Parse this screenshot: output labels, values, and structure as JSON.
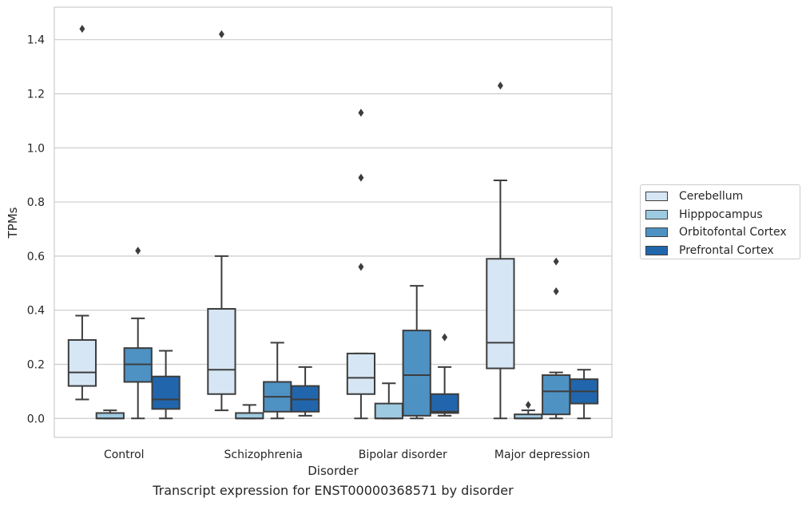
{
  "caption": "Transcript expression for ENST00000368571 by disorder",
  "chart_data": {
    "type": "box",
    "xlabel": "Disorder",
    "ylabel": "TPMs",
    "ylim": [
      -0.07,
      1.52
    ],
    "yticks": [
      "0.0",
      "0.2",
      "0.4",
      "0.6",
      "0.8",
      "1.0",
      "1.2",
      "1.4"
    ],
    "grid": "horizontal",
    "legend_position": "right",
    "categories": [
      "Control",
      "Schizophrenia",
      "Bipolar disorder",
      "Major depression"
    ],
    "series": [
      {
        "name": "Cerebellum",
        "color": "#d6e6f4",
        "boxes": [
          {
            "whislo": 0.07,
            "q1": 0.12,
            "med": 0.17,
            "q3": 0.29,
            "whishi": 0.38,
            "fliers": [
              1.44
            ]
          },
          {
            "whislo": 0.03,
            "q1": 0.09,
            "med": 0.18,
            "q3": 0.405,
            "whishi": 0.6,
            "fliers": [
              1.42
            ]
          },
          {
            "whislo": 0.0,
            "q1": 0.09,
            "med": 0.15,
            "q3": 0.24,
            "whishi": 0.24,
            "fliers": [
              0.56,
              0.89,
              1.13
            ]
          },
          {
            "whislo": 0.0,
            "q1": 0.185,
            "med": 0.28,
            "q3": 0.59,
            "whishi": 0.88,
            "fliers": [
              1.23
            ]
          }
        ]
      },
      {
        "name": "Hipppocampus",
        "color": "#9ecae1",
        "boxes": [
          {
            "whislo": 0.0,
            "q1": 0.0,
            "med": 0.0,
            "q3": 0.02,
            "whishi": 0.03,
            "fliers": []
          },
          {
            "whislo": 0.0,
            "q1": 0.0,
            "med": 0.0,
            "q3": 0.02,
            "whishi": 0.05,
            "fliers": []
          },
          {
            "whislo": 0.0,
            "q1": 0.0,
            "med": 0.0,
            "q3": 0.055,
            "whishi": 0.13,
            "fliers": []
          },
          {
            "whislo": 0.0,
            "q1": 0.0,
            "med": 0.0,
            "q3": 0.015,
            "whishi": 0.03,
            "fliers": [
              0.05
            ]
          }
        ]
      },
      {
        "name": "Orbitofontal Cortex",
        "color": "#4e92c3",
        "boxes": [
          {
            "whislo": 0.0,
            "q1": 0.135,
            "med": 0.2,
            "q3": 0.26,
            "whishi": 0.37,
            "fliers": [
              0.62
            ]
          },
          {
            "whislo": 0.0,
            "q1": 0.025,
            "med": 0.08,
            "q3": 0.135,
            "whishi": 0.28,
            "fliers": []
          },
          {
            "whislo": 0.0,
            "q1": 0.01,
            "med": 0.16,
            "q3": 0.325,
            "whishi": 0.49,
            "fliers": []
          },
          {
            "whislo": 0.0,
            "q1": 0.015,
            "med": 0.1,
            "q3": 0.16,
            "whishi": 0.17,
            "fliers": [
              0.47,
              0.58
            ]
          }
        ]
      },
      {
        "name": "Prefrontal Cortex",
        "color": "#2166ac",
        "boxes": [
          {
            "whislo": 0.0,
            "q1": 0.035,
            "med": 0.07,
            "q3": 0.155,
            "whishi": 0.25,
            "fliers": []
          },
          {
            "whislo": 0.01,
            "q1": 0.025,
            "med": 0.07,
            "q3": 0.12,
            "whishi": 0.19,
            "fliers": []
          },
          {
            "whislo": 0.01,
            "q1": 0.02,
            "med": 0.025,
            "q3": 0.09,
            "whishi": 0.19,
            "fliers": [
              0.3
            ]
          },
          {
            "whislo": 0.0,
            "q1": 0.055,
            "med": 0.1,
            "q3": 0.145,
            "whishi": 0.18,
            "fliers": []
          }
        ]
      }
    ]
  }
}
